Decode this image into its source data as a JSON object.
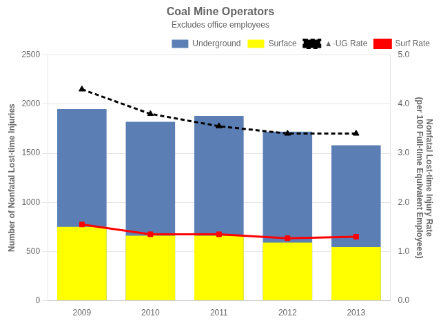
{
  "chart_data": {
    "type": "bar",
    "title": "Coal Mine Operators",
    "subtitle": "Excludes office employees",
    "categories": [
      "2009",
      "2010",
      "2011",
      "2012",
      "2013"
    ],
    "series": [
      {
        "name": "Underground",
        "type": "bar",
        "color": "#5B7FB5",
        "values": [
          1950,
          1820,
          1880,
          1720,
          1580
        ]
      },
      {
        "name": "Surface",
        "type": "bar",
        "color": "#FFFF00",
        "values": [
          750,
          660,
          660,
          590,
          545
        ]
      },
      {
        "name": "▲·UG Rate",
        "type": "line",
        "axis": "y2",
        "color": "#000000",
        "line_style": "dashed",
        "marker": "triangle",
        "values": [
          4.3,
          3.8,
          3.55,
          3.4,
          3.4
        ]
      },
      {
        "name": "Surf Rate",
        "type": "line",
        "axis": "y2",
        "color": "#FF0000",
        "line_style": "solid",
        "marker": "square",
        "values": [
          1.55,
          1.35,
          1.35,
          1.27,
          1.3
        ]
      }
    ],
    "ylabel": "Number of Nonfatal Lost-time Injuries",
    "y2label": "Nonfatal Lost-time Injury Rate\n(per 100 Full-time Equivalent Employees)",
    "ylim": [
      0,
      2500
    ],
    "yticks": [
      0,
      500,
      1000,
      1500,
      2000,
      2500
    ],
    "y2lim": [
      0,
      5.0
    ],
    "y2ticks": [
      {
        "value": 0,
        "label": "0.0"
      },
      {
        "value": 1,
        "label": "1.0"
      },
      {
        "value": 2,
        "label": "2.0"
      },
      {
        "value": 3,
        "label": "3.0"
      },
      {
        "value": 4,
        "label": "4.0"
      },
      {
        "value": 5,
        "label": "5.0"
      }
    ],
    "grid": true,
    "legend": "upper right"
  }
}
